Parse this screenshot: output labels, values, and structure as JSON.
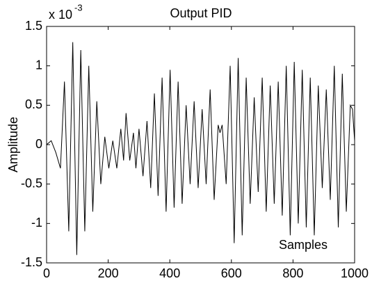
{
  "chart_data": {
    "type": "line",
    "title": "Output PID",
    "xlabel": "Samples",
    "ylabel": "Amplitude",
    "y_multiplier_base": "x 10",
    "y_multiplier_exponent": "-3",
    "color": "#000000",
    "x": [
      0,
      15,
      30,
      45,
      58,
      72,
      85,
      98,
      111,
      124,
      137,
      150,
      163,
      176,
      189,
      202,
      215,
      228,
      241,
      250,
      258,
      270,
      282,
      290,
      300,
      313,
      326,
      338,
      350,
      362,
      375,
      388,
      401,
      414,
      427,
      440,
      453,
      466,
      479,
      492,
      505,
      518,
      531,
      544,
      557,
      563,
      570,
      583,
      596,
      609,
      622,
      635,
      648,
      661,
      674,
      687,
      700,
      713,
      726,
      739,
      752,
      765,
      778,
      791,
      804,
      817,
      830,
      843,
      856,
      869,
      882,
      895,
      908,
      921,
      934,
      947,
      960,
      973,
      986,
      993,
      1000
    ],
    "values": [
      0,
      0.05,
      -0.1,
      -0.3,
      0.8,
      -1.1,
      1.3,
      -1.4,
      1.2,
      -1.1,
      1.0,
      -0.85,
      0.55,
      -0.5,
      0.1,
      -0.3,
      0.05,
      -0.3,
      0.2,
      -0.2,
      0.4,
      -0.2,
      0.15,
      -0.3,
      0.2,
      -0.4,
      0.3,
      -0.55,
      0.65,
      -0.65,
      0.85,
      -0.85,
      0.95,
      -0.8,
      0.8,
      -0.75,
      0.5,
      -0.5,
      0.55,
      -0.55,
      0.45,
      -0.5,
      0.7,
      -0.7,
      0.25,
      0.15,
      0.25,
      -0.5,
      1.0,
      -1.25,
      1.1,
      -1.15,
      0.85,
      -0.75,
      0.6,
      -0.6,
      0.85,
      -0.85,
      0.75,
      -0.75,
      0.8,
      -0.9,
      1.0,
      -1.15,
      1.05,
      -1.0,
      0.95,
      -1.05,
      0.85,
      -1.15,
      0.75,
      -0.55,
      0.7,
      -0.7,
      1.0,
      -1.05,
      0.9,
      -0.85,
      0.5,
      0.45,
      0.05
    ],
    "xlim": [
      0,
      1000
    ],
    "xticks": [
      0,
      200,
      400,
      600,
      800,
      1000
    ],
    "ylim": [
      -1.5,
      1.5
    ],
    "yticks": [
      -1.5,
      -1,
      -0.5,
      0,
      0.5,
      1,
      1.5
    ]
  }
}
